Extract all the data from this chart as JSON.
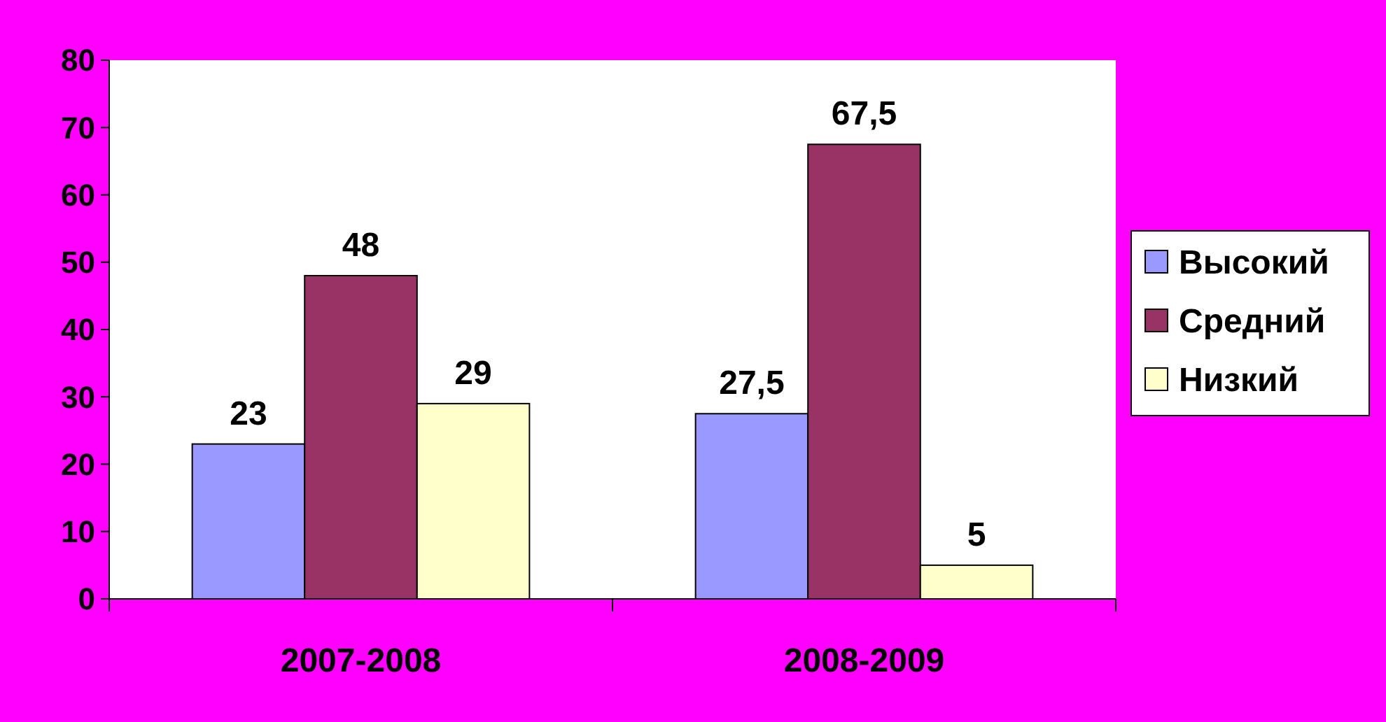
{
  "chart_data": {
    "type": "bar",
    "categories": [
      "2007-2008",
      "2008-2009"
    ],
    "series": [
      {
        "name": "Высокий",
        "color": "#9999ff",
        "values": [
          23,
          27.5
        ],
        "value_labels": [
          "23",
          "27,5"
        ]
      },
      {
        "name": "Средний",
        "color": "#993366",
        "values": [
          48,
          67.5
        ],
        "value_labels": [
          "48",
          "67,5"
        ]
      },
      {
        "name": "Низкий",
        "color": "#ffffcc",
        "values": [
          29,
          5
        ],
        "value_labels": [
          "29",
          "5"
        ]
      }
    ],
    "ylim": [
      0,
      80
    ],
    "yticks": [
      0,
      10,
      20,
      30,
      40,
      50,
      60,
      70,
      80
    ],
    "grid": false,
    "legend": "right"
  }
}
